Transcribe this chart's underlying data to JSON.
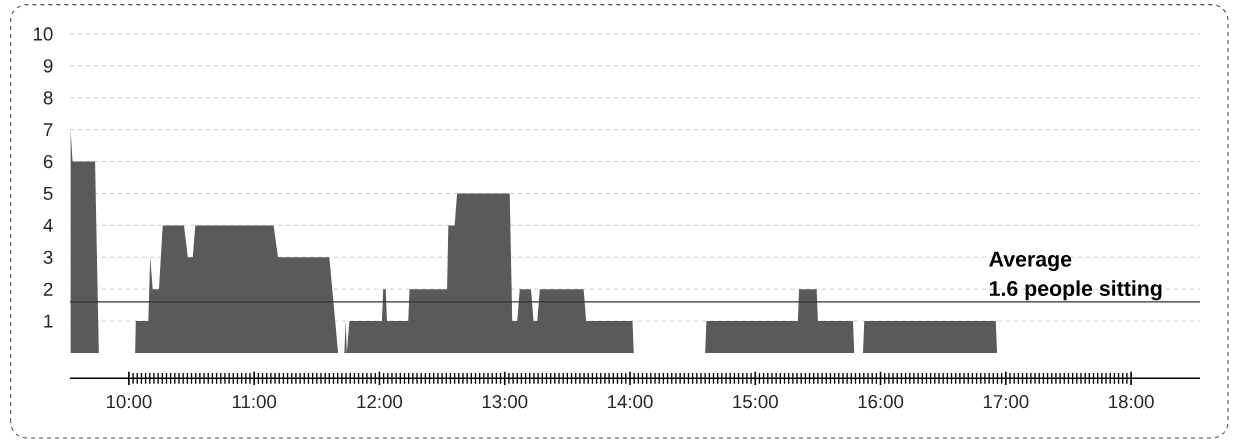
{
  "chart_data": {
    "type": "area",
    "x": [
      9.535,
      9.55,
      9.73,
      9.76,
      10.05,
      10.055,
      10.155,
      10.17,
      10.19,
      10.24,
      10.27,
      10.44,
      10.47,
      10.51,
      10.53,
      11.155,
      11.19,
      11.6,
      11.67,
      11.72,
      11.73,
      11.74,
      11.76,
      12.02,
      12.03,
      12.05,
      12.06,
      12.23,
      12.24,
      12.54,
      12.55,
      12.6,
      12.62,
      13.04,
      13.06,
      13.1,
      13.12,
      13.21,
      13.23,
      13.26,
      13.28,
      13.63,
      13.65,
      14.02,
      14.03,
      14.6,
      14.61,
      15.34,
      15.35,
      15.49,
      15.5,
      15.78,
      15.79,
      15.86,
      15.87,
      16.92,
      16.93
    ],
    "series": [
      {
        "color": "#5a5a5a",
        "values": [
          7,
          6,
          6,
          0,
          0,
          1,
          1,
          3,
          2,
          2,
          4,
          4,
          3,
          3,
          4,
          4,
          3,
          3,
          0,
          0,
          1,
          0,
          1,
          1,
          2,
          2,
          1,
          1,
          2,
          2,
          4,
          4,
          5,
          5,
          1,
          1,
          2,
          2,
          1,
          1,
          2,
          2,
          1,
          1,
          0,
          0,
          1,
          1,
          2,
          2,
          1,
          1,
          0,
          0,
          1,
          1,
          0
        ]
      }
    ],
    "xlim": [
      9.53,
      18.55
    ],
    "ylim": [
      0,
      10
    ],
    "xticks": [
      {
        "value": 10,
        "label": "10:00"
      },
      {
        "value": 11,
        "label": "11:00"
      },
      {
        "value": 12,
        "label": "12:00"
      },
      {
        "value": 13,
        "label": "13:00"
      },
      {
        "value": 14,
        "label": "14:00"
      },
      {
        "value": 15,
        "label": "15:00"
      },
      {
        "value": 16,
        "label": "16:00"
      },
      {
        "value": 17,
        "label": "17:00"
      },
      {
        "value": 18,
        "label": "18:00"
      }
    ],
    "yticks": [
      1,
      2,
      3,
      4,
      5,
      6,
      7,
      8,
      9,
      10
    ],
    "grid": "y",
    "ref_lines": [
      {
        "axis": "y",
        "value": 1.6,
        "label": "Average",
        "color": "#333333"
      }
    ],
    "annotations": [
      {
        "text": "1.6 people sitting",
        "y": 1.6
      }
    ]
  }
}
